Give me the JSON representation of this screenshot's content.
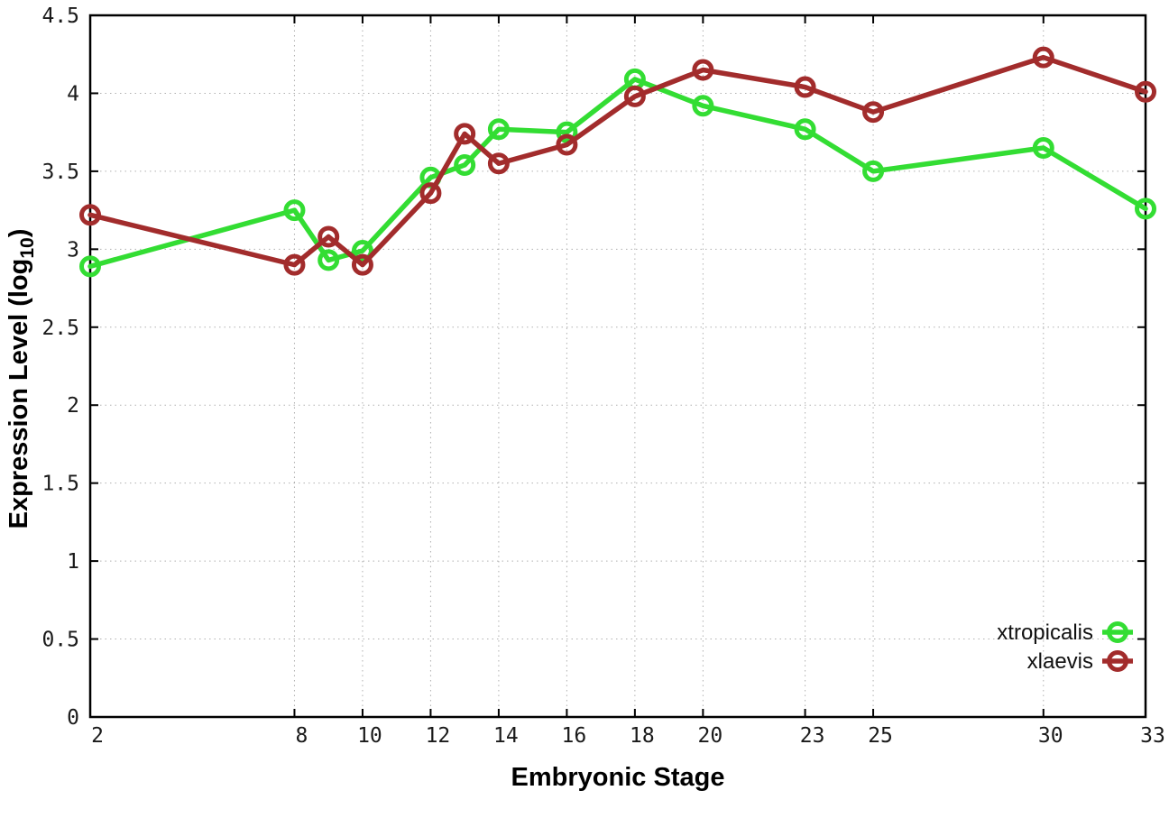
{
  "chart_data": {
    "type": "line",
    "title": "",
    "xlabel": "Embryonic Stage",
    "ylabel": "Expression Level (log10)",
    "ylabel_prefix": "Expression Level (log",
    "ylabel_subscript": "10",
    "ylabel_suffix": ")",
    "x": [
      2,
      8,
      9,
      10,
      12,
      13,
      14,
      16,
      18,
      20,
      23,
      25,
      30,
      33
    ],
    "series": [
      {
        "name": "xtropicalis",
        "color": "#33dd33",
        "values": [
          2.89,
          3.25,
          2.93,
          2.99,
          3.46,
          3.54,
          3.77,
          3.75,
          4.09,
          3.92,
          3.77,
          3.5,
          3.65,
          3.26
        ]
      },
      {
        "name": "xlaevis",
        "color": "#a22c2c",
        "values": [
          3.22,
          2.9,
          3.08,
          2.9,
          3.36,
          3.74,
          3.55,
          3.67,
          3.98,
          4.15,
          4.04,
          3.88,
          4.23,
          4.01
        ]
      }
    ],
    "xlim": [
      2,
      33
    ],
    "ylim": [
      0,
      4.5
    ],
    "x_ticks": [
      2,
      8,
      10,
      12,
      14,
      16,
      18,
      20,
      23,
      25,
      30,
      33
    ],
    "x_tick_labels": [
      "2",
      "8",
      "10",
      "12",
      "14",
      "16",
      "18",
      "20",
      "23",
      "25",
      "30",
      "33"
    ],
    "y_ticks": [
      0,
      0.5,
      1,
      1.5,
      2,
      2.5,
      3,
      3.5,
      4,
      4.5
    ],
    "y_tick_labels": [
      "0",
      "0.5",
      "1",
      "1.5",
      "2",
      "2.5",
      "3",
      "3.5",
      "4",
      "4.5"
    ],
    "grid": true,
    "marker": "open-circle",
    "legend_position": "bottom-right",
    "legend": [
      "xtropicalis",
      "xlaevis"
    ]
  },
  "colors": {
    "background": "#ffffff",
    "plot_border": "#000000",
    "grid": "#b0b0b0",
    "tick_text": "#1a1a1a",
    "series_xtropicalis": "#33dd33",
    "series_xlaevis": "#a22c2c"
  }
}
